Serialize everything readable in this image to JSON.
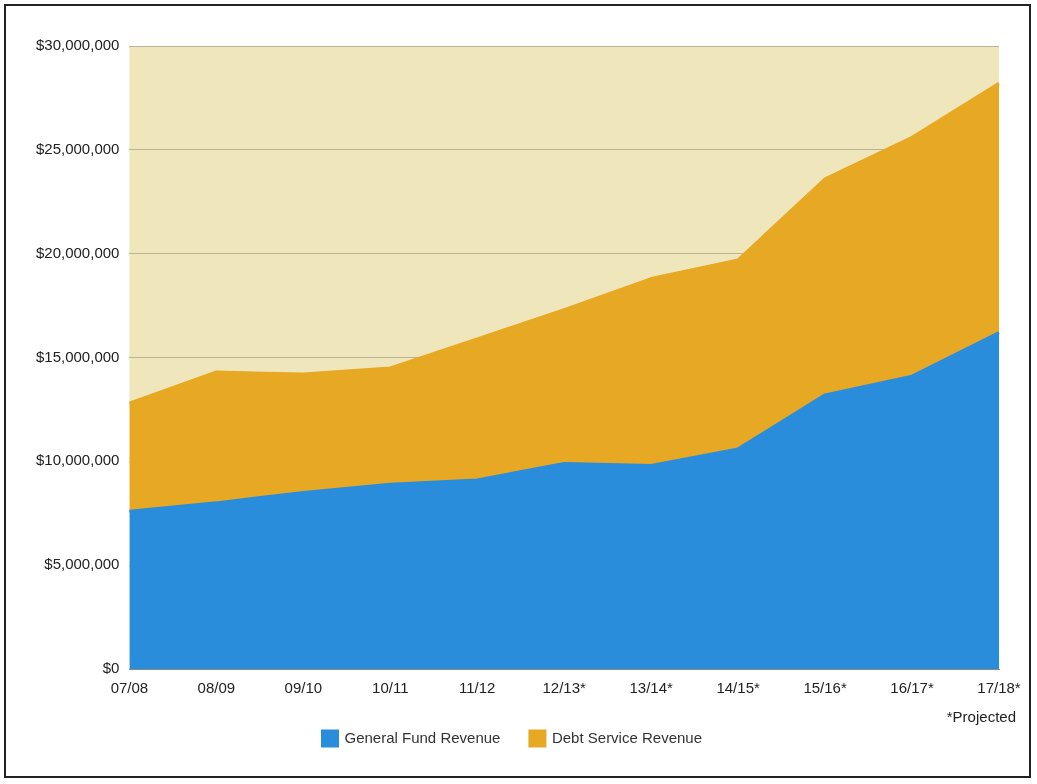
{
  "chart_data": {
    "type": "area",
    "stacked": true,
    "categories": [
      "07/08",
      "08/09",
      "09/10",
      "10/11",
      "11/12",
      "12/13*",
      "13/14*",
      "14/15*",
      "15/16*",
      "16/17*",
      "17/18*"
    ],
    "series": [
      {
        "name": "General Fund Revenue",
        "color": "#2a8ddb",
        "values": [
          7600000,
          8000000,
          8500000,
          8900000,
          9100000,
          9900000,
          9800000,
          10600000,
          13200000,
          14100000,
          16200000
        ]
      },
      {
        "name": "Debt Service Revenue",
        "color": "#e7a824",
        "values": [
          5200000,
          6300000,
          5700000,
          5600000,
          6800000,
          7400000,
          9000000,
          9100000,
          10400000,
          11500000,
          12000000
        ]
      }
    ],
    "ylim": [
      0,
      30000000
    ],
    "yticks": [
      {
        "value": 0,
        "label": "$0"
      },
      {
        "value": 5000000,
        "label": "$5,000,000"
      },
      {
        "value": 10000000,
        "label": "$10,000,000"
      },
      {
        "value": 15000000,
        "label": "$15,000,000"
      },
      {
        "value": 20000000,
        "label": "$20,000,000"
      },
      {
        "value": 25000000,
        "label": "$25,000,000"
      },
      {
        "value": 30000000,
        "label": "$30,000,000"
      }
    ],
    "grid": "y",
    "legend": "bottom",
    "marker": "none",
    "annotations": [
      "*Projected"
    ]
  }
}
